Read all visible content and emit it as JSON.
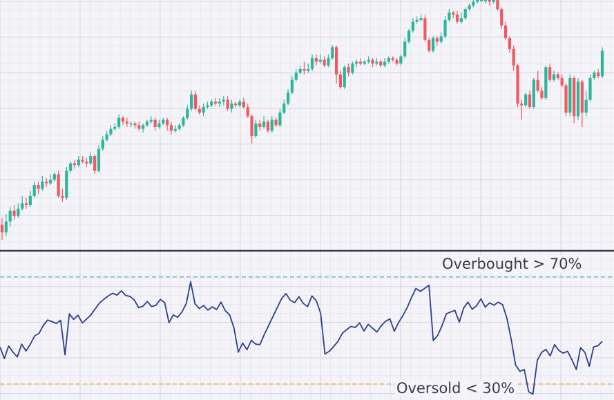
{
  "chart_data": [
    {
      "type": "candlestick",
      "grid": true,
      "colors": {
        "up": "#2bb59a",
        "down": "#ef5a62"
      },
      "candles": [
        [
          58,
          54,
          62,
          50
        ],
        [
          54,
          60,
          64,
          52
        ],
        [
          60,
          66,
          68,
          57
        ],
        [
          66,
          63,
          69,
          61
        ],
        [
          63,
          67,
          70,
          62
        ],
        [
          67,
          70,
          74,
          66
        ],
        [
          70,
          69,
          73,
          67
        ],
        [
          69,
          74,
          77,
          68
        ],
        [
          74,
          80,
          82,
          73
        ],
        [
          80,
          78,
          82,
          75
        ],
        [
          78,
          82,
          85,
          77
        ],
        [
          82,
          81,
          84,
          79
        ],
        [
          81,
          83,
          86,
          80
        ],
        [
          83,
          86,
          87,
          82
        ],
        [
          86,
          74,
          88,
          73
        ],
        [
          74,
          73,
          78,
          71
        ],
        [
          73,
          88,
          90,
          72
        ],
        [
          88,
          92,
          93,
          87
        ],
        [
          92,
          91,
          94,
          89
        ],
        [
          91,
          94,
          96,
          90
        ],
        [
          94,
          93,
          96,
          92
        ],
        [
          93,
          92,
          95,
          90
        ],
        [
          92,
          96,
          98,
          91
        ],
        [
          96,
          88,
          97,
          86
        ],
        [
          88,
          100,
          102,
          87
        ],
        [
          100,
          105,
          107,
          99
        ],
        [
          105,
          108,
          110,
          104
        ],
        [
          108,
          111,
          113,
          107
        ],
        [
          111,
          112,
          114,
          110
        ],
        [
          112,
          117,
          119,
          111
        ],
        [
          117,
          115,
          118,
          113
        ],
        [
          115,
          114,
          117,
          112
        ],
        [
          114,
          114,
          115,
          112
        ],
        [
          114,
          113,
          115,
          111
        ],
        [
          113,
          111,
          115,
          110
        ],
        [
          111,
          113,
          114,
          109
        ],
        [
          113,
          115,
          116,
          112
        ],
        [
          115,
          116,
          118,
          114
        ],
        [
          116,
          112,
          117,
          110
        ],
        [
          112,
          114,
          116,
          111
        ],
        [
          114,
          116,
          117,
          113
        ],
        [
          116,
          113,
          117,
          110
        ],
        [
          113,
          110,
          115,
          108
        ],
        [
          110,
          111,
          113,
          109
        ],
        [
          111,
          113,
          114,
          110
        ],
        [
          113,
          117,
          118,
          112
        ],
        [
          117,
          122,
          124,
          116
        ],
        [
          122,
          130,
          132,
          121
        ],
        [
          130,
          122,
          132,
          121
        ],
        [
          122,
          120,
          124,
          119
        ],
        [
          120,
          123,
          125,
          118
        ],
        [
          123,
          124,
          126,
          122
        ],
        [
          124,
          126,
          127,
          123
        ],
        [
          126,
          125,
          128,
          124
        ],
        [
          125,
          126,
          128,
          123
        ],
        [
          126,
          127,
          129,
          124
        ],
        [
          127,
          122,
          129,
          121
        ],
        [
          122,
          125,
          127,
          120
        ],
        [
          125,
          124,
          126,
          123
        ],
        [
          124,
          126,
          127,
          123
        ],
        [
          126,
          123,
          128,
          122
        ],
        [
          123,
          118,
          125,
          117
        ],
        [
          118,
          107,
          119,
          103
        ],
        [
          107,
          114,
          116,
          106
        ],
        [
          114,
          112,
          116,
          110
        ],
        [
          112,
          115,
          118,
          111
        ],
        [
          115,
          110,
          116,
          109
        ],
        [
          110,
          116,
          118,
          109
        ],
        [
          116,
          113,
          117,
          112
        ],
        [
          113,
          120,
          122,
          112
        ],
        [
          120,
          125,
          127,
          119
        ],
        [
          125,
          131,
          133,
          124
        ],
        [
          131,
          138,
          140,
          130
        ],
        [
          138,
          142,
          144,
          137
        ],
        [
          142,
          144,
          146,
          141
        ],
        [
          144,
          143,
          148,
          141
        ],
        [
          143,
          144,
          147,
          142
        ],
        [
          144,
          150,
          152,
          143
        ],
        [
          150,
          148,
          152,
          146
        ],
        [
          148,
          149,
          152,
          147
        ],
        [
          149,
          146,
          151,
          145
        ],
        [
          146,
          150,
          152,
          145
        ],
        [
          150,
          156,
          157,
          149
        ],
        [
          156,
          141,
          157,
          136
        ],
        [
          141,
          134,
          143,
          133
        ],
        [
          134,
          145,
          146,
          133
        ],
        [
          145,
          142,
          147,
          140
        ],
        [
          142,
          147,
          148,
          141
        ],
        [
          147,
          148,
          149,
          145
        ],
        [
          148,
          147,
          150,
          146
        ],
        [
          147,
          148,
          149,
          146
        ],
        [
          148,
          149,
          151,
          147
        ],
        [
          149,
          147,
          150,
          145
        ],
        [
          147,
          148,
          150,
          146
        ],
        [
          148,
          146,
          149,
          145
        ],
        [
          146,
          148,
          150,
          145
        ],
        [
          148,
          150,
          151,
          147
        ],
        [
          150,
          149,
          151,
          148
        ],
        [
          149,
          147,
          150,
          146
        ],
        [
          147,
          151,
          152,
          146
        ],
        [
          151,
          159,
          161,
          150
        ],
        [
          159,
          165,
          166,
          158
        ],
        [
          165,
          170,
          172,
          164
        ],
        [
          170,
          171,
          173,
          169
        ],
        [
          171,
          172,
          174,
          170
        ],
        [
          172,
          160,
          174,
          159
        ],
        [
          160,
          154,
          161,
          153
        ],
        [
          154,
          161,
          162,
          153
        ],
        [
          161,
          159,
          162,
          157
        ],
        [
          159,
          162,
          164,
          158
        ],
        [
          162,
          171,
          173,
          161
        ],
        [
          171,
          175,
          177,
          170
        ],
        [
          175,
          174,
          176,
          172
        ],
        [
          174,
          170,
          176,
          169
        ],
        [
          170,
          172,
          175,
          169
        ],
        [
          172,
          177,
          178,
          171
        ],
        [
          177,
          179,
          180,
          176
        ],
        [
          179,
          181,
          182,
          178
        ],
        [
          181,
          182,
          183,
          180
        ],
        [
          182,
          182,
          183,
          181
        ],
        [
          182,
          182,
          183,
          180
        ],
        [
          182,
          181,
          183,
          179
        ],
        [
          181,
          182,
          183,
          180
        ],
        [
          182,
          177,
          183,
          176
        ],
        [
          177,
          168,
          178,
          166
        ],
        [
          168,
          161,
          170,
          160
        ],
        [
          161,
          155,
          162,
          153
        ],
        [
          155,
          146,
          157,
          143
        ],
        [
          146,
          125,
          147,
          123
        ],
        [
          125,
          124,
          127,
          116
        ],
        [
          124,
          130,
          131,
          123
        ],
        [
          130,
          123,
          132,
          122
        ],
        [
          123,
          138,
          139,
          122
        ],
        [
          138,
          132,
          143,
          131
        ],
        [
          132,
          128,
          134,
          127
        ],
        [
          128,
          145,
          146,
          127
        ],
        [
          145,
          138,
          147,
          137
        ],
        [
          138,
          141,
          143,
          137
        ],
        [
          141,
          139,
          142,
          138
        ],
        [
          139,
          135,
          141,
          134
        ],
        [
          135,
          120,
          136,
          118
        ],
        [
          120,
          139,
          141,
          118
        ],
        [
          139,
          118,
          140,
          114
        ],
        [
          118,
          137,
          139,
          116
        ],
        [
          137,
          120,
          138,
          112
        ],
        [
          120,
          127,
          132,
          118
        ],
        [
          127,
          139,
          141,
          126
        ],
        [
          139,
          142,
          143,
          138
        ],
        [
          142,
          140,
          144,
          139
        ],
        [
          140,
          154,
          156,
          139
        ]
      ]
    },
    {
      "type": "line",
      "grid": true,
      "ylim": [
        24,
        79
      ],
      "colors": {
        "line": "#2b3f8a",
        "overbought": "#79c6c0",
        "oversold": "#f2b46a"
      },
      "series": [
        {
          "values": [
            43.8,
            39.5,
            44.2,
            41.9,
            40.1,
            44.9,
            42.3,
            44.8,
            48,
            48.9,
            51.9,
            53.9,
            53.3,
            52.6,
            53.8,
            40.9,
            56.2,
            54.1,
            55.7,
            52.8,
            54.3,
            55.8,
            58.1,
            60.3,
            61.7,
            62.9,
            63.9,
            63.2,
            64.8,
            63.1,
            62.7,
            61.4,
            58.5,
            59.1,
            60.8,
            58.9,
            59.4,
            61.6,
            60.4,
            52.9,
            55.8,
            54.9,
            56.9,
            60.1,
            68.2,
            60,
            58.2,
            59.3,
            57.6,
            58.8,
            57.8,
            60.6,
            57.4,
            55.8,
            50.9,
            41.9,
            45.3,
            42.8,
            46.3,
            44.9,
            44.7,
            48.5,
            51.8,
            55.2,
            58.6,
            61.9,
            63.8,
            61.3,
            60.4,
            62.6,
            60.1,
            58.9,
            62.9,
            61.1,
            56.4,
            41.2,
            42.2,
            44,
            45.9,
            48.9,
            50.3,
            51.5,
            51.1,
            52.8,
            49.8,
            52.3,
            50.8,
            49.4,
            51.8,
            53.4,
            54.3,
            49.7,
            53,
            55.6,
            58.6,
            62.4,
            65.7,
            64.6,
            65.7,
            66.9,
            46.2,
            48.1,
            51.7,
            56.2,
            56.9,
            57.5,
            53.1,
            58.4,
            60.6,
            57.9,
            59.3,
            61.8,
            58.7,
            60.3,
            59.4,
            60.6,
            59.6,
            54.5,
            46.5,
            37.1,
            34.7,
            35.4,
            27.1,
            26.2,
            38.8,
            41.8,
            42.9,
            40.5,
            44.7,
            42.5,
            41.5,
            42.2,
            39,
            35.4,
            43.6,
            41.8,
            36.6,
            43.8,
            44.3,
            45.9
          ]
        }
      ],
      "levels": {
        "overbought": 70,
        "oversold": 30
      },
      "annotations": [
        "Overbought > 70%",
        "Oversold < 30%"
      ]
    }
  ]
}
